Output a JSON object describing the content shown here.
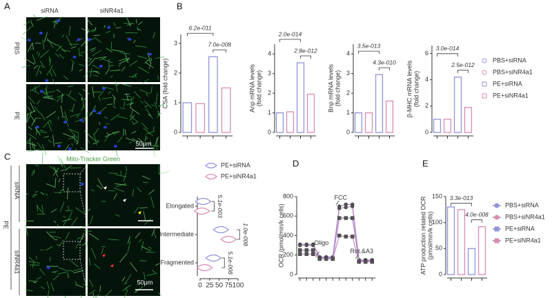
{
  "panel_labels": [
    "A",
    "B",
    "C",
    "D",
    "E"
  ],
  "panel_a": {
    "columns": [
      "siRNA",
      "siNR4a1"
    ],
    "rows": [
      "PBS",
      "PE"
    ],
    "scale_bar": "50μm"
  },
  "panel_c": {
    "title": "Mito-Tracker Green",
    "group": "PE",
    "rows": [
      "siRNA",
      "siNR4a1"
    ],
    "scale_bar": "50μm"
  },
  "chart_data": [
    {
      "type": "bar",
      "ylabel": [
        "CSA (fold change)"
      ],
      "categories": [
        null,
        null,
        null,
        null
      ],
      "values": [
        1.0,
        0.97,
        2.55,
        1.5
      ],
      "colors": [
        "#8f93db",
        "#d98ab5",
        "#8f93db",
        "#d98ab5"
      ],
      "ylim": [
        0,
        3.3
      ],
      "yticks": [
        0,
        1,
        2,
        3
      ],
      "annotations": [
        "6.2e-011",
        "7.0e-008"
      ]
    },
    {
      "type": "bar",
      "ylabel": [
        "Anp mRNA levels",
        "(fold change)"
      ],
      "categories": [
        null,
        null,
        null,
        null
      ],
      "values": [
        1.0,
        1.05,
        3.55,
        1.95
      ],
      "colors": [
        "#8f93db",
        "#d98ab5",
        "#8f93db",
        "#d98ab5"
      ],
      "ylim": [
        0,
        4.5
      ],
      "yticks": [
        0,
        1,
        2,
        3,
        4
      ],
      "annotations": [
        "2.0e-014",
        "2.8e-012"
      ]
    },
    {
      "type": "bar",
      "ylabel": [
        "Bnp mRNA levels",
        "(fold change)"
      ],
      "categories": [
        null,
        null,
        null,
        null
      ],
      "values": [
        1.0,
        1.0,
        2.95,
        1.6
      ],
      "colors": [
        "#8f93db",
        "#d98ab5",
        "#8f93db",
        "#d98ab5"
      ],
      "ylim": [
        0,
        4.5
      ],
      "yticks": [
        0,
        1,
        2,
        3,
        4
      ],
      "annotations": [
        "3.5e-013",
        "4.3e-010"
      ]
    },
    {
      "type": "bar",
      "ylabel": [
        "β-MHC mRNA levels",
        "(fold change)"
      ],
      "categories": [
        null,
        null,
        null,
        null
      ],
      "values": [
        1.0,
        1.0,
        4.2,
        1.9
      ],
      "colors": [
        "#8f93db",
        "#d98ab5",
        "#8f93db",
        "#d98ab5"
      ],
      "ylim": [
        0,
        6.6
      ],
      "yticks": [
        0,
        2,
        4,
        6
      ],
      "annotations": [
        "3.0e-014",
        "2.5e-012"
      ],
      "legend": [
        {
          "name": "PBS+siRNA",
          "color": "#8f93db",
          "marker": "circle"
        },
        {
          "name": "PBS+siNR4a1",
          "color": "#d98ab5",
          "marker": "circle"
        },
        {
          "name": "PE+siRNA",
          "color": "#8f93db",
          "marker": "square"
        },
        {
          "name": "PE+siNR4a1",
          "color": "#d98ab5",
          "marker": "square"
        }
      ]
    },
    {
      "type": "violin",
      "categories": [
        "Elongated",
        "Intermediate",
        "Fragmented"
      ],
      "series": [
        {
          "name": "PE+siRNA",
          "color": "#8f93db",
          "values": [
            8,
            55,
            35
          ]
        },
        {
          "name": "PE+siNR4a1",
          "color": "#d98ab5",
          "values": [
            5,
            75,
            12
          ]
        }
      ],
      "xlim": [
        0,
        100
      ],
      "xticks": [
        0,
        25,
        50,
        75,
        100
      ],
      "annotations": [
        "5.1e-003",
        "1.0e-008",
        "5.1e-008"
      ]
    },
    {
      "type": "line",
      "ylabel": [
        "OCR (pmol/min/k cells)"
      ],
      "categories": [
        null,
        null,
        null,
        null,
        null,
        null,
        null,
        null,
        null,
        null,
        null,
        null
      ],
      "series": [
        {
          "color": "#9a8fd6",
          "marker": "circle",
          "values": [
            310,
            310,
            310,
            180,
            180,
            180,
            700,
            720,
            720,
            150,
            150,
            150
          ]
        },
        {
          "color": "#c48ac0",
          "marker": "circle",
          "values": [
            300,
            300,
            300,
            175,
            175,
            175,
            680,
            690,
            700,
            145,
            145,
            145
          ]
        },
        {
          "color": "#a98bd0",
          "marker": "square",
          "values": [
            250,
            250,
            250,
            170,
            170,
            170,
            580,
            580,
            580,
            140,
            140,
            140
          ]
        },
        {
          "color": "#c98cbf",
          "marker": "square",
          "values": [
            210,
            210,
            210,
            160,
            160,
            160,
            400,
            390,
            390,
            130,
            130,
            130
          ]
        }
      ],
      "ylim": [
        0,
        800
      ],
      "yticks": [
        0,
        200,
        400,
        600,
        800
      ],
      "annotations": [
        "Oligo",
        "FCC",
        "Rot.&A3"
      ]
    },
    {
      "type": "bar",
      "ylabel": [
        "ATP production related OCR",
        "(pmol/min/k cells)"
      ],
      "categories": [
        null,
        null,
        null,
        null
      ],
      "values": [
        130,
        125,
        50,
        92
      ],
      "colors": [
        "#8f93db",
        "#d98ab5",
        "#8f93db",
        "#d98ab5"
      ],
      "ylim": [
        0,
        150
      ],
      "yticks": [
        0,
        50,
        100,
        150
      ],
      "annotations": [
        "3.3e-013",
        "4.0e-008"
      ],
      "legend": [
        {
          "name": "PBS+siRNA",
          "color": "#8f93db",
          "marker": "circle"
        },
        {
          "name": "PBS+siNR4a1",
          "color": "#d98ab5",
          "marker": "circle"
        },
        {
          "name": "PE+siRNA",
          "color": "#8f93db",
          "marker": "square"
        },
        {
          "name": "PE+siNR4a1",
          "color": "#d98ab5",
          "marker": "square"
        }
      ]
    }
  ]
}
